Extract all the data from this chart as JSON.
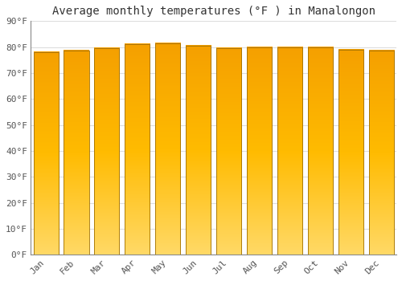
{
  "title": "Average monthly temperatures (°F ) in Manalongon",
  "months": [
    "Jan",
    "Feb",
    "Mar",
    "Apr",
    "May",
    "Jun",
    "Jul",
    "Aug",
    "Sep",
    "Oct",
    "Nov",
    "Dec"
  ],
  "values": [
    78,
    78.5,
    79.5,
    81,
    81.5,
    80.5,
    79.5,
    80,
    80,
    80,
    79,
    78.5
  ],
  "bar_color_top": "#F5A800",
  "bar_color_bottom": "#FFD966",
  "bar_edge_color": "#A07000",
  "ylim": [
    0,
    90
  ],
  "yticks": [
    0,
    10,
    20,
    30,
    40,
    50,
    60,
    70,
    80,
    90
  ],
  "ytick_labels": [
    "0°F",
    "10°F",
    "20°F",
    "30°F",
    "40°F",
    "50°F",
    "60°F",
    "70°F",
    "80°F",
    "90°F"
  ],
  "background_color": "#ffffff",
  "grid_color": "#dddddd",
  "title_fontsize": 10,
  "tick_fontsize": 8,
  "font_family": "monospace"
}
